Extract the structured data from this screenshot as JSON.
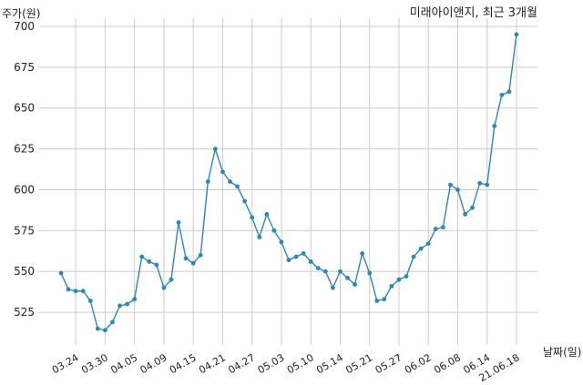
{
  "chart_data": {
    "type": "line",
    "title": "미래아이앤지, 최근 3개월",
    "xlabel": "날짜(일)",
    "ylabel": "주가(원)",
    "ylim": [
      505,
      705
    ],
    "grid": true,
    "line_color": "#2e86b4",
    "yticks": [
      525,
      550,
      575,
      600,
      625,
      650,
      675,
      700
    ],
    "xtick_labels": [
      "03.24",
      "03.30",
      "04.05",
      "04.09",
      "04.15",
      "04.21",
      "04.27",
      "05.03",
      "05.10",
      "05.14",
      "05.21",
      "05.27",
      "06.02",
      "06.08",
      "06.14",
      "21.06.18"
    ],
    "xtick_index": [
      2,
      6,
      10,
      14,
      18,
      22,
      26,
      30,
      34,
      38,
      42,
      46,
      50,
      54,
      58,
      62
    ],
    "values": [
      549,
      539,
      538,
      538,
      532,
      515,
      514,
      519,
      529,
      530,
      533,
      559,
      556,
      554,
      540,
      545,
      580,
      558,
      555,
      560,
      605,
      625,
      611,
      605,
      602,
      593,
      583,
      571,
      585,
      575,
      568,
      557,
      559,
      561,
      556,
      552,
      550,
      540,
      550,
      546,
      542,
      561,
      549,
      532,
      533,
      541,
      545,
      547,
      559,
      564,
      567,
      576,
      577,
      603,
      600,
      585,
      589,
      604,
      603,
      639,
      658,
      660,
      695
    ]
  }
}
